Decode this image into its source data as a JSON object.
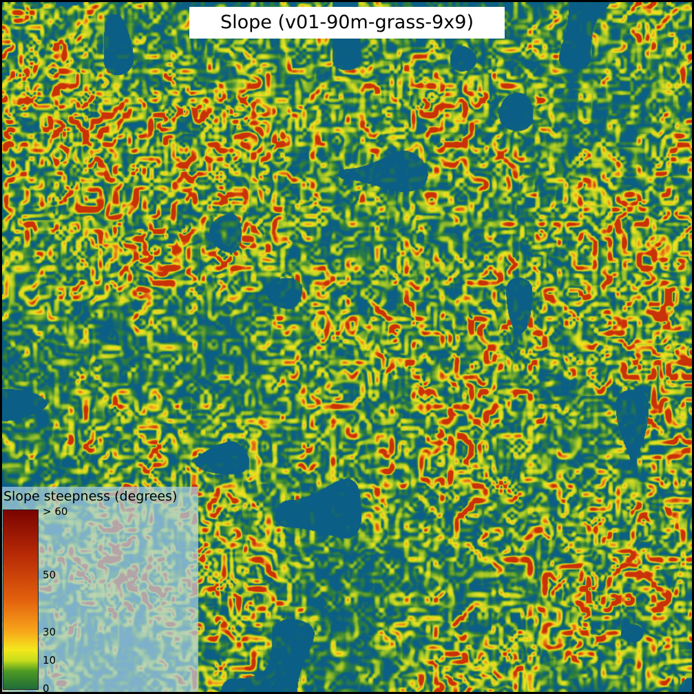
{
  "map": {
    "title": "Slope (v01-90m-grass-9x9)",
    "palette": {
      "flat": "#0b5e86",
      "low": "#2f7f3a",
      "mid": "#9cc32b",
      "high": "#f1e51f",
      "steep": "#e8801a",
      "very_steep": "#c83208"
    }
  },
  "legend": {
    "title": "Slope steepness (degrees)",
    "ticks": [
      "> 60",
      "50",
      "30",
      "10",
      "0"
    ],
    "tick_values": [
      60,
      50,
      30,
      10,
      0
    ]
  }
}
